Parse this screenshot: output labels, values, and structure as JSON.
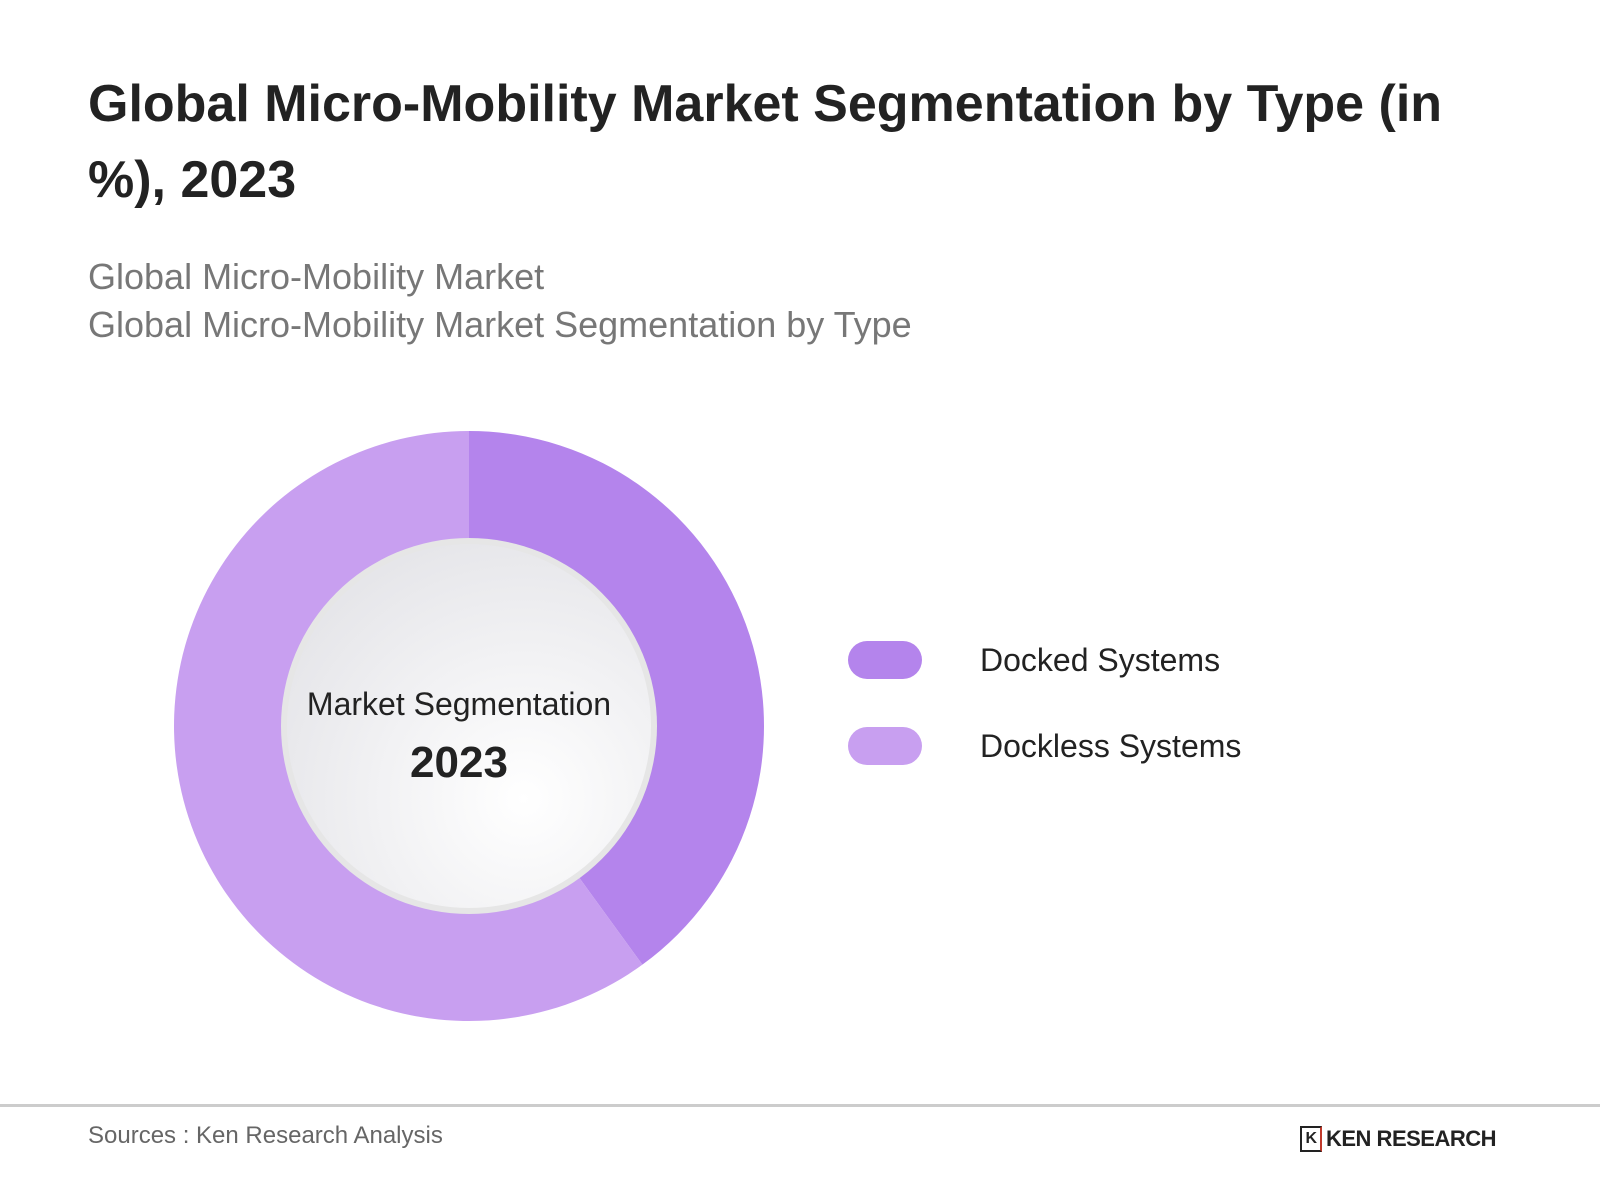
{
  "title": "Global Micro-Mobility Market Segmentation by Type (in %), 2023",
  "subtitle_1": "Global Micro-Mobility Market",
  "subtitle_2": "Global Micro-Mobility Market Segmentation by Type",
  "chart_data": {
    "type": "pie",
    "variant": "donut",
    "center_label": "Market Segmentation",
    "center_year": "2023",
    "legend_placement": "right",
    "slices": [
      {
        "name": "Docked Systems",
        "value": 40,
        "color": "#b484ec"
      },
      {
        "name": "Dockless Systems",
        "value": 60,
        "color": "#c89ff0"
      }
    ]
  },
  "footer": {
    "source": "Sources : Ken Research Analysis",
    "logo_text": "KEN RESEARCH"
  }
}
